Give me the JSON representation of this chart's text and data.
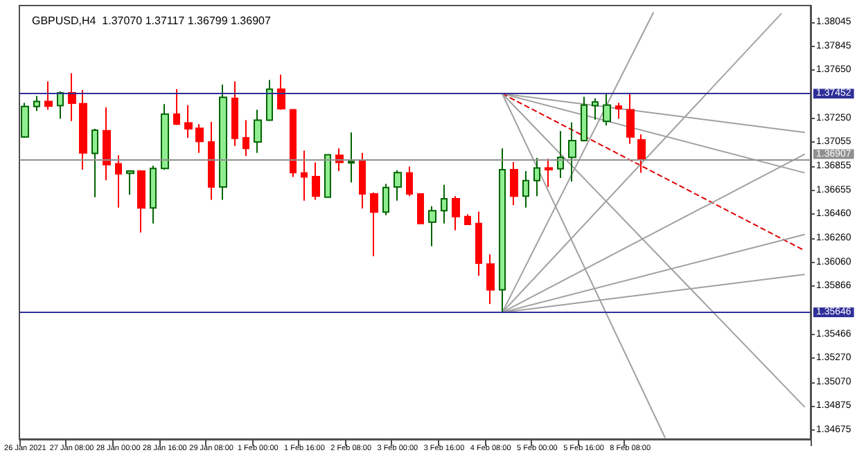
{
  "chart_data": {
    "type": "candlestick",
    "title": "GBPUSD,H4  1.37070 1.37117 1.36799 1.36907",
    "categories": [
      "26 Jan 2021",
      null,
      null,
      null,
      "27 Jan 08:00",
      null,
      null,
      null,
      "28 Jan 00:00",
      null,
      null,
      null,
      "28 Jan 16:00",
      null,
      null,
      null,
      "29 Jan 08:00",
      null,
      null,
      null,
      "1 Feb 00:00",
      null,
      null,
      null,
      "1 Feb 16:00",
      null,
      null,
      null,
      "2 Feb 08:00",
      null,
      null,
      null,
      "3 Feb 00:00",
      null,
      null,
      null,
      "3 Feb 16:00",
      null,
      null,
      null,
      "4 Feb 08:00",
      null,
      null,
      null,
      "5 Feb 00:00",
      null,
      null,
      null,
      "5 Feb 16:00",
      null,
      null,
      null,
      "8 Feb 08:00",
      null,
      null,
      null,
      null,
      null,
      null,
      null,
      null,
      null,
      null,
      null,
      null,
      null,
      null,
      null
    ],
    "ohlc": [
      [
        1.37095,
        1.37377,
        1.37087,
        1.37347
      ],
      [
        1.37347,
        1.37433,
        1.37309,
        1.37388
      ],
      [
        1.37388,
        1.37554,
        1.3732,
        1.3735
      ],
      [
        1.37354,
        1.37471,
        1.37245,
        1.3746
      ],
      [
        1.3746,
        1.37621,
        1.37226,
        1.37373
      ],
      [
        1.37369,
        1.37482,
        1.36824,
        1.36963
      ],
      [
        1.36959,
        1.37162,
        1.36598,
        1.37151
      ],
      [
        1.37147,
        1.37339,
        1.36738,
        1.36866
      ],
      [
        1.36873,
        1.36944,
        1.36512,
        1.3679
      ],
      [
        1.36794,
        1.3682,
        1.36617,
        1.36813
      ],
      [
        1.36813,
        1.3682,
        1.36305,
        1.36508
      ],
      [
        1.36508,
        1.36858,
        1.3638,
        1.36835
      ],
      [
        1.36835,
        1.37366,
        1.36824,
        1.37283
      ],
      [
        1.37283,
        1.3749,
        1.37193,
        1.372
      ],
      [
        1.37211,
        1.37358,
        1.37087,
        1.37162
      ],
      [
        1.37166,
        1.372,
        1.36963,
        1.37057
      ],
      [
        1.37053,
        1.37219,
        1.36576,
        1.36681
      ],
      [
        1.36681,
        1.37527,
        1.36576,
        1.37422
      ],
      [
        1.37414,
        1.37554,
        1.3702,
        1.37084
      ],
      [
        1.37087,
        1.37234,
        1.36937,
        1.37001
      ],
      [
        1.37053,
        1.3732,
        1.36963,
        1.37234
      ],
      [
        1.37234,
        1.37565,
        1.37226,
        1.3749
      ],
      [
        1.3749,
        1.3761,
        1.3732,
        1.37328
      ],
      [
        1.3732,
        1.3732,
        1.36764,
        1.36801
      ],
      [
        1.36798,
        1.36982,
        1.36568,
        1.36764
      ],
      [
        1.36768,
        1.36884,
        1.36576,
        1.36606
      ],
      [
        1.36598,
        1.36952,
        1.36598,
        1.36948
      ],
      [
        1.36944,
        1.37001,
        1.36813,
        1.36884
      ],
      [
        1.3688,
        1.37132,
        1.36719,
        1.36892
      ],
      [
        1.36895,
        1.36963,
        1.36505,
        1.36625
      ],
      [
        1.36625,
        1.36636,
        1.3611,
        1.36474
      ],
      [
        1.36474,
        1.36707,
        1.36448,
        1.36677
      ],
      [
        1.36681,
        1.3682,
        1.36568,
        1.36801
      ],
      [
        1.36798,
        1.3685,
        1.36606,
        1.36625
      ],
      [
        1.36625,
        1.36625,
        1.3638,
        1.3638
      ],
      [
        1.36392,
        1.36523,
        1.36192,
        1.36486
      ],
      [
        1.36486,
        1.367,
        1.3638,
        1.36584
      ],
      [
        1.36584,
        1.36606,
        1.36324,
        1.36437
      ],
      [
        1.36437,
        1.36456,
        1.36373,
        1.36373
      ],
      [
        1.3638,
        1.36478,
        1.35948,
        1.36053
      ],
      [
        1.36046,
        1.36125,
        1.35715,
        1.35832
      ],
      [
        1.35832,
        1.37001,
        1.35646,
        1.36824
      ],
      [
        1.36824,
        1.36888,
        1.36531,
        1.36606
      ],
      [
        1.36606,
        1.36813,
        1.36512,
        1.36734
      ],
      [
        1.36734,
        1.36922,
        1.36606,
        1.36839
      ],
      [
        1.36839,
        1.36914,
        1.36681,
        1.36824
      ],
      [
        1.36832,
        1.37144,
        1.36756,
        1.36926
      ],
      [
        1.36926,
        1.37215,
        1.36726,
        1.37065
      ],
      [
        1.37065,
        1.37426,
        1.37057,
        1.37358
      ],
      [
        1.37354,
        1.37414,
        1.37238,
        1.37384
      ],
      [
        1.37223,
        1.37452,
        1.37189,
        1.37358
      ],
      [
        1.3735,
        1.37377,
        1.37245,
        1.37328
      ],
      [
        1.3732,
        1.37452,
        1.37038,
        1.37095
      ],
      [
        1.3707,
        1.37117,
        1.36799,
        1.36907
      ],
      null,
      null,
      null,
      null,
      null,
      null,
      null,
      null,
      null,
      null,
      null,
      null,
      null,
      null
    ],
    "series": [
      {
        "type": "line",
        "color": "#a0a0a0",
        "values": [
          null,
          null,
          null,
          null,
          null,
          null,
          null,
          null,
          null,
          null,
          null,
          null,
          null,
          null,
          null,
          null,
          null,
          null,
          null,
          null,
          null,
          null,
          null,
          null,
          null,
          null,
          null,
          null,
          null,
          null,
          null,
          null,
          null,
          null,
          null,
          null,
          null,
          null,
          null,
          null,
          null,
          1.37452,
          null,
          null,
          null,
          null,
          null,
          null,
          null,
          null,
          null,
          null,
          null,
          null,
          null,
          null,
          null,
          null,
          null,
          null,
          null,
          null,
          null,
          null,
          null,
          null,
          null,
          1.37132
        ]
      },
      {
        "type": "line",
        "color": "#a0a0a0",
        "values": [
          null,
          null,
          null,
          null,
          null,
          null,
          null,
          null,
          null,
          null,
          null,
          null,
          null,
          null,
          null,
          null,
          null,
          null,
          null,
          null,
          null,
          null,
          null,
          null,
          null,
          null,
          null,
          null,
          null,
          null,
          null,
          null,
          null,
          null,
          null,
          null,
          null,
          null,
          null,
          null,
          null,
          1.37452,
          null,
          null,
          null,
          null,
          null,
          null,
          null,
          null,
          null,
          null,
          null,
          null,
          null,
          null,
          null,
          null,
          null,
          null,
          null,
          null,
          null,
          null,
          null,
          null,
          null,
          1.36798
        ]
      },
      {
        "type": "line",
        "color": "#e00000",
        "line_style": "dashed",
        "values": [
          null,
          null,
          null,
          null,
          null,
          null,
          null,
          null,
          null,
          null,
          null,
          null,
          null,
          null,
          null,
          null,
          null,
          null,
          null,
          null,
          null,
          null,
          null,
          null,
          null,
          null,
          null,
          null,
          null,
          null,
          null,
          null,
          null,
          null,
          null,
          null,
          null,
          null,
          null,
          null,
          null,
          1.37452,
          null,
          null,
          null,
          null,
          null,
          null,
          null,
          null,
          null,
          null,
          null,
          null,
          null,
          null,
          null,
          null,
          null,
          null,
          null,
          null,
          null,
          null,
          null,
          null,
          null,
          1.36156
        ]
      },
      {
        "type": "line",
        "color": "#a0a0a0",
        "values": [
          null,
          null,
          null,
          null,
          null,
          null,
          null,
          null,
          null,
          null,
          null,
          null,
          null,
          null,
          null,
          null,
          null,
          null,
          null,
          null,
          null,
          null,
          null,
          null,
          null,
          null,
          null,
          null,
          null,
          null,
          null,
          null,
          null,
          null,
          null,
          null,
          null,
          null,
          null,
          null,
          null,
          1.37452,
          null,
          null,
          null,
          null,
          null,
          null,
          null,
          null,
          null,
          null,
          null,
          null,
          null,
          null,
          null,
          null,
          null,
          null,
          null,
          null,
          null,
          null,
          null,
          null,
          null,
          1.34864
        ]
      },
      {
        "type": "line",
        "color": "#a0a0a0",
        "values": [
          null,
          null,
          null,
          null,
          null,
          null,
          null,
          null,
          null,
          null,
          null,
          null,
          null,
          null,
          null,
          null,
          null,
          null,
          null,
          null,
          null,
          null,
          null,
          null,
          null,
          null,
          null,
          null,
          null,
          null,
          null,
          null,
          null,
          null,
          null,
          null,
          null,
          null,
          null,
          null,
          null,
          1.37452,
          null,
          null,
          null,
          null,
          null,
          null,
          null,
          null,
          null,
          null,
          null,
          null,
          null,
          1.3461,
          null,
          null,
          null,
          null,
          null,
          null,
          null,
          null,
          null,
          null,
          null,
          null
        ]
      },
      {
        "type": "line",
        "color": "#a0a0a0",
        "values": [
          null,
          null,
          null,
          null,
          null,
          null,
          null,
          null,
          null,
          null,
          null,
          null,
          null,
          null,
          null,
          null,
          null,
          null,
          null,
          null,
          null,
          null,
          null,
          null,
          null,
          null,
          null,
          null,
          null,
          null,
          null,
          null,
          null,
          null,
          null,
          null,
          null,
          null,
          null,
          null,
          null,
          1.35646,
          null,
          null,
          null,
          null,
          null,
          null,
          null,
          null,
          null,
          null,
          null,
          null,
          1.38124,
          null,
          null,
          null,
          null,
          null,
          null,
          null,
          null,
          null,
          null,
          null,
          null,
          null
        ]
      },
      {
        "type": "line",
        "color": "#a0a0a0",
        "values": [
          null,
          null,
          null,
          null,
          null,
          null,
          null,
          null,
          null,
          null,
          null,
          null,
          null,
          null,
          null,
          null,
          null,
          null,
          null,
          null,
          null,
          null,
          null,
          null,
          null,
          null,
          null,
          null,
          null,
          null,
          null,
          null,
          null,
          null,
          null,
          null,
          null,
          null,
          null,
          null,
          null,
          1.35646,
          null,
          null,
          null,
          null,
          null,
          null,
          null,
          null,
          null,
          null,
          null,
          null,
          null,
          null,
          null,
          null,
          null,
          null,
          null,
          null,
          null,
          null,
          null,
          1.38115,
          null,
          null
        ]
      },
      {
        "type": "line",
        "color": "#a0a0a0",
        "values": [
          null,
          null,
          null,
          null,
          null,
          null,
          null,
          null,
          null,
          null,
          null,
          null,
          null,
          null,
          null,
          null,
          null,
          null,
          null,
          null,
          null,
          null,
          null,
          null,
          null,
          null,
          null,
          null,
          null,
          null,
          null,
          null,
          null,
          null,
          null,
          null,
          null,
          null,
          null,
          null,
          null,
          1.35646,
          null,
          null,
          null,
          null,
          null,
          null,
          null,
          null,
          null,
          null,
          null,
          null,
          null,
          null,
          null,
          null,
          null,
          null,
          null,
          null,
          null,
          null,
          null,
          null,
          null,
          1.36953
        ]
      },
      {
        "type": "line",
        "color": "#a0a0a0",
        "values": [
          null,
          null,
          null,
          null,
          null,
          null,
          null,
          null,
          null,
          null,
          null,
          null,
          null,
          null,
          null,
          null,
          null,
          null,
          null,
          null,
          null,
          null,
          null,
          null,
          null,
          null,
          null,
          null,
          null,
          null,
          null,
          null,
          null,
          null,
          null,
          null,
          null,
          null,
          null,
          null,
          null,
          1.35646,
          null,
          null,
          null,
          null,
          null,
          null,
          null,
          null,
          null,
          null,
          null,
          null,
          null,
          null,
          null,
          null,
          null,
          null,
          null,
          null,
          null,
          null,
          null,
          null,
          null,
          1.3629
        ]
      },
      {
        "type": "line",
        "color": "#a0a0a0",
        "values": [
          null,
          null,
          null,
          null,
          null,
          null,
          null,
          null,
          null,
          null,
          null,
          null,
          null,
          null,
          null,
          null,
          null,
          null,
          null,
          null,
          null,
          null,
          null,
          null,
          null,
          null,
          null,
          null,
          null,
          null,
          null,
          null,
          null,
          null,
          null,
          null,
          null,
          null,
          null,
          null,
          null,
          1.35646,
          null,
          null,
          null,
          null,
          null,
          null,
          null,
          null,
          null,
          null,
          null,
          null,
          null,
          null,
          null,
          null,
          null,
          null,
          null,
          null,
          null,
          null,
          null,
          null,
          null,
          1.3596
        ]
      }
    ],
    "ylim": [
      1.346,
      1.3818
    ],
    "yticks": [
      {
        "value": 1.38045,
        "label": "1.38045"
      },
      {
        "value": 1.37845,
        "label": "1.37845"
      },
      {
        "value": 1.3765,
        "label": "1.37650"
      },
      {
        "value": 1.3725,
        "label": "1.37250"
      },
      {
        "value": 1.37055,
        "label": "1.37055"
      },
      {
        "value": 1.36855,
        "label": "1.36855"
      },
      {
        "value": 1.36655,
        "label": "1.36655"
      },
      {
        "value": 1.3646,
        "label": "1.36460"
      },
      {
        "value": 1.3626,
        "label": "1.36260"
      },
      {
        "value": 1.3606,
        "label": "1.36060"
      },
      {
        "value": 1.35866,
        "label": "1.35866"
      },
      {
        "value": 1.35466,
        "label": "1.35466"
      },
      {
        "value": 1.3527,
        "label": "1.35270"
      },
      {
        "value": 1.3507,
        "label": "1.35070"
      },
      {
        "value": 1.34875,
        "label": "1.34875"
      },
      {
        "value": 1.34675,
        "label": "1.34675"
      }
    ],
    "ref_lines": [
      {
        "axis": "y",
        "value": 1.37452,
        "label": "1.37452",
        "color": "#2f2f9a"
      },
      {
        "axis": "y",
        "value": 1.36907,
        "label": "1.36907",
        "color": "#909090"
      },
      {
        "axis": "y",
        "value": 1.35646,
        "label": "1.35646",
        "color": "#2f2f9a"
      }
    ],
    "grid": false
  }
}
